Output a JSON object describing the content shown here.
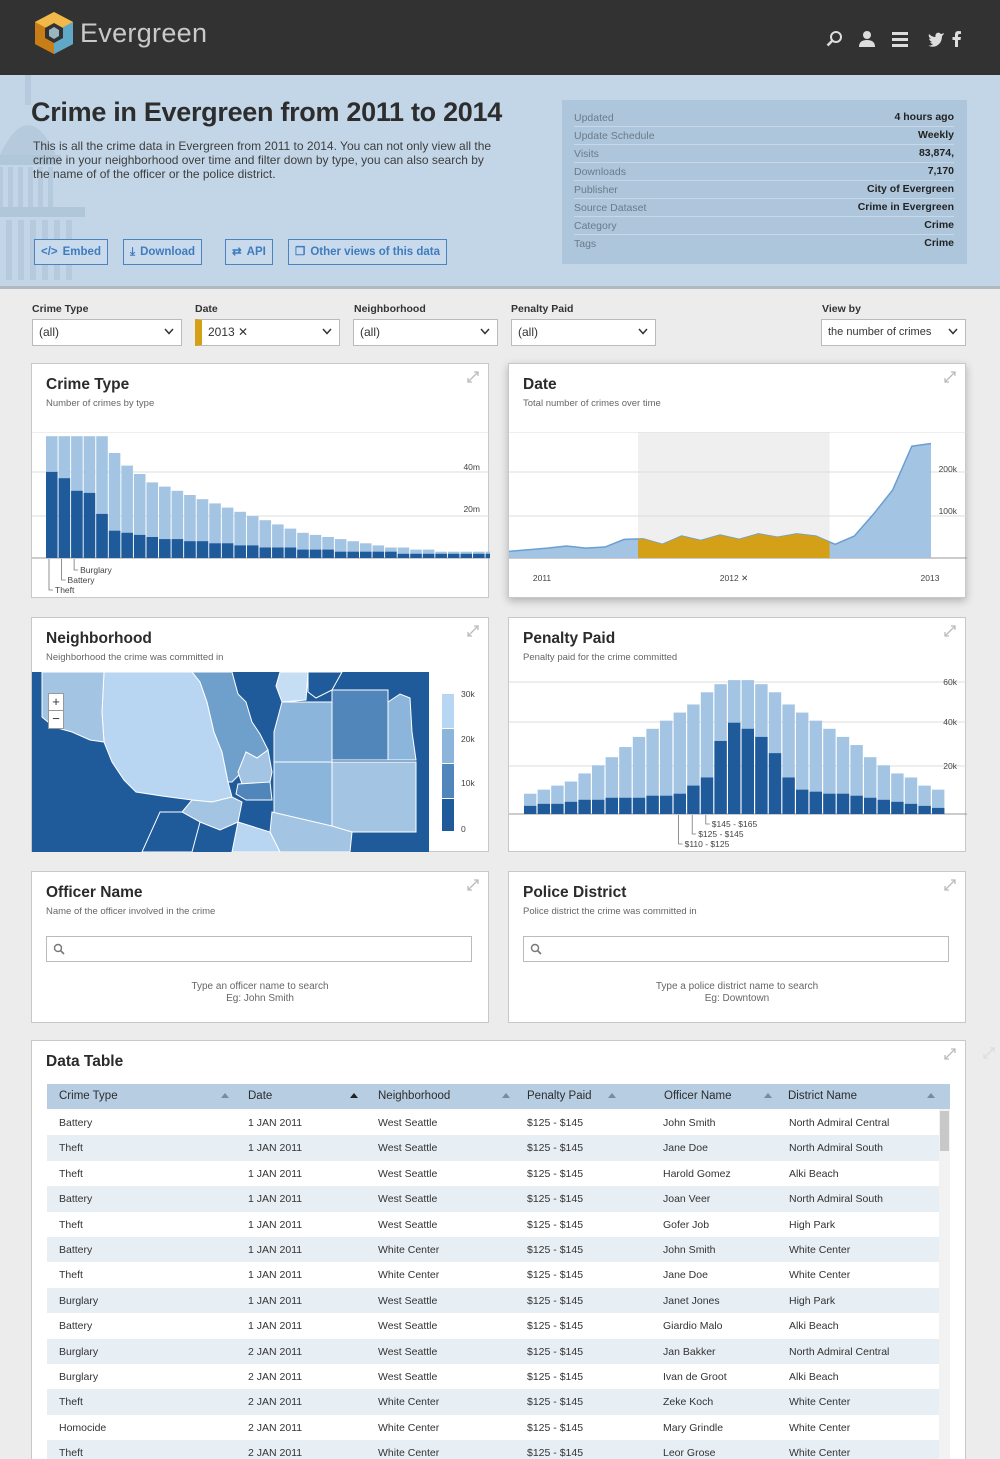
{
  "brand": {
    "name": "Evergreen"
  },
  "nav_icons": [
    "search-icon",
    "user-icon",
    "menu-icon",
    "twitter-icon",
    "facebook-icon"
  ],
  "hero": {
    "title": "Crime in Evergreen from 2011 to 2014",
    "description": "This is all the crime data in Evergreen from 2011 to 2014. You can not only view all the crime in your neighborhood over time and filter down by type, you can also search by the name of of the officer or the police district.",
    "buttons": {
      "embed": "Embed",
      "download": "Download",
      "api": "API",
      "other": "Other views of this data"
    }
  },
  "meta": [
    {
      "k": "Updated",
      "v": "4 hours ago"
    },
    {
      "k": "Update Schedule",
      "v": "Weekly"
    },
    {
      "k": "Visits",
      "v": "83,874,"
    },
    {
      "k": "Downloads",
      "v": "7,170"
    },
    {
      "k": "Publisher",
      "v": "City of Evergreen"
    },
    {
      "k": "Source Dataset",
      "v": "Crime in Evergreen"
    },
    {
      "k": "Category",
      "v": "Crime"
    },
    {
      "k": "Tags",
      "v": "Crime"
    }
  ],
  "filters": {
    "crime_type": {
      "label": "Crime Type",
      "value": "(all)"
    },
    "date": {
      "label": "Date",
      "value": "2013 ✕"
    },
    "neighborhood": {
      "label": "Neighborhood",
      "value": "(all)"
    },
    "penalty": {
      "label": "Penalty Paid",
      "value": "(all)"
    },
    "view_by": {
      "label": "View by",
      "value": "the number of crimes"
    }
  },
  "colors": {
    "accent": "#d4a017",
    "dark_blue": "#1f5b9b",
    "light_blue": "#a4c4e3",
    "link": "#3f7cbe"
  },
  "cards": {
    "crime_type": {
      "title": "Crime Type",
      "subtitle": "Number of crimes by type"
    },
    "date": {
      "title": "Date",
      "subtitle": "Total number of crimes over time"
    },
    "neighborhood": {
      "title": "Neighborhood",
      "subtitle": "Neighborhood the crime was committed in"
    },
    "penalty": {
      "title": "Penalty Paid",
      "subtitle": "Penalty paid for the crime committed"
    },
    "officer": {
      "title": "Officer Name",
      "subtitle": "Name of the officer involved in the crime",
      "hint1": "Type an officer name to search",
      "hint2": "Eg: John Smith"
    },
    "district": {
      "title": "Police District",
      "subtitle": "Police district the crime was committed in",
      "hint1": "Type a police district name to search",
      "hint2": "Eg: Downtown"
    }
  },
  "map": {
    "legend": [
      "30k",
      "20k",
      "10k",
      "0"
    ],
    "zoom_in": "+",
    "zoom_out": "−"
  },
  "chart_data": [
    {
      "type": "bar",
      "title": "Crime Type",
      "ylim": [
        0,
        60
      ],
      "yticks": [
        "20m",
        "40m"
      ],
      "labeled_categories": [
        "Burglary",
        "Battery",
        "Theft"
      ],
      "series": [
        {
          "name": "total",
          "values": [
            58,
            58,
            58,
            58,
            58,
            50,
            44,
            40,
            36,
            34,
            32,
            30,
            28,
            26,
            24,
            22,
            20,
            18,
            16,
            14,
            12,
            11,
            10,
            9,
            8,
            7,
            6,
            5,
            5,
            4,
            4,
            3,
            3,
            3,
            3,
            3,
            3,
            3,
            3,
            3,
            3,
            3
          ]
        },
        {
          "name": "filtered",
          "values": [
            41,
            38,
            32,
            31,
            21,
            13,
            12,
            11,
            10,
            9,
            9,
            8,
            8,
            7,
            7,
            6,
            6,
            5,
            5,
            5,
            4,
            4,
            4,
            3,
            3,
            3,
            3,
            3,
            2,
            2,
            2,
            2,
            2,
            2,
            2,
            2,
            2,
            2,
            2,
            2,
            2,
            2
          ]
        }
      ]
    },
    {
      "type": "area",
      "title": "Date",
      "ylim": [
        0,
        230
      ],
      "yticks": [
        "100k",
        "200k"
      ],
      "x_labels": [
        "2011",
        "2012 ✕",
        "2013"
      ],
      "selected_range": [
        0.32,
        0.8
      ],
      "values": [
        12,
        15,
        18,
        22,
        18,
        20,
        34,
        35,
        25,
        40,
        32,
        42,
        34,
        44,
        38,
        44,
        40,
        25,
        40,
        80,
        124,
        204,
        209
      ]
    },
    {
      "type": "bar",
      "title": "Penalty Paid",
      "ylim": [
        0,
        70
      ],
      "yticks": [
        "20k",
        "40k",
        "60k"
      ],
      "labeled_categories": [
        "$145 - $165",
        "$125 - $145",
        "$110 - $125"
      ],
      "series": [
        {
          "name": "total",
          "values": [
            10,
            12,
            14,
            16,
            20,
            24,
            28,
            33,
            38,
            42,
            46,
            50,
            54,
            60,
            64,
            66,
            66,
            64,
            60,
            54,
            50,
            46,
            42,
            38,
            34,
            28,
            24,
            20,
            18,
            14,
            12
          ]
        },
        {
          "name": "filtered",
          "values": [
            4,
            5,
            5,
            6,
            7,
            7,
            8,
            8,
            8,
            9,
            9,
            10,
            14,
            18,
            36,
            45,
            42,
            38,
            30,
            18,
            12,
            11,
            10,
            10,
            9,
            8,
            7,
            6,
            5,
            4,
            3
          ]
        }
      ]
    }
  ],
  "table": {
    "title": "Data Table",
    "columns": [
      "Crime Type",
      "Date",
      "Neighborhood",
      "Penalty Paid",
      "Officer Name",
      "District Name"
    ],
    "rows": [
      [
        "Battery",
        "1 JAN 2011",
        "West Seattle",
        "$125 - $145",
        "John Smith",
        "North Admiral Central"
      ],
      [
        "Theft",
        "1 JAN 2011",
        "West Seattle",
        "$125 - $145",
        "Jane Doe",
        "North Admiral South"
      ],
      [
        "Theft",
        "1 JAN 2011",
        "West Seattle",
        "$125 - $145",
        "Harold Gomez",
        "Alki Beach"
      ],
      [
        "Battery",
        "1 JAN 2011",
        "West Seattle",
        "$125 - $145",
        "Joan Veer",
        "North Admiral South"
      ],
      [
        "Theft",
        "1 JAN 2011",
        "West Seattle",
        "$125 - $145",
        "Gofer Job",
        "High Park"
      ],
      [
        "Battery",
        "1 JAN 2011",
        "White Center",
        "$125 - $145",
        "John Smith",
        "White Center"
      ],
      [
        "Theft",
        "1 JAN 2011",
        "White Center",
        "$125 - $145",
        "Jane Doe",
        "White Center"
      ],
      [
        "Burglary",
        "1 JAN 2011",
        "West Seattle",
        "$125 - $145",
        "Janet Jones",
        "High Park"
      ],
      [
        "Battery",
        "1 JAN 2011",
        "West Seattle",
        "$125 - $145",
        "Giardio Malo",
        "Alki Beach"
      ],
      [
        "Burglary",
        "2 JAN 2011",
        "West Seattle",
        "$125 - $145",
        "Jan Bakker",
        "North Admiral Central"
      ],
      [
        "Burglary",
        "2 JAN 2011",
        "West Seattle",
        "$125 - $145",
        "Ivan de Groot",
        "Alki Beach"
      ],
      [
        "Theft",
        "2 JAN 2011",
        "White Center",
        "$125 - $145",
        "Zeke Koch",
        "White Center"
      ],
      [
        "Homocide",
        "2 JAN 2011",
        "White Center",
        "$125 - $145",
        "Mary Grindle",
        "White Center"
      ],
      [
        "Theft",
        "2 JAN 2011",
        "White Center",
        "$125 - $145",
        "Leor Grose",
        "White Center"
      ]
    ]
  }
}
